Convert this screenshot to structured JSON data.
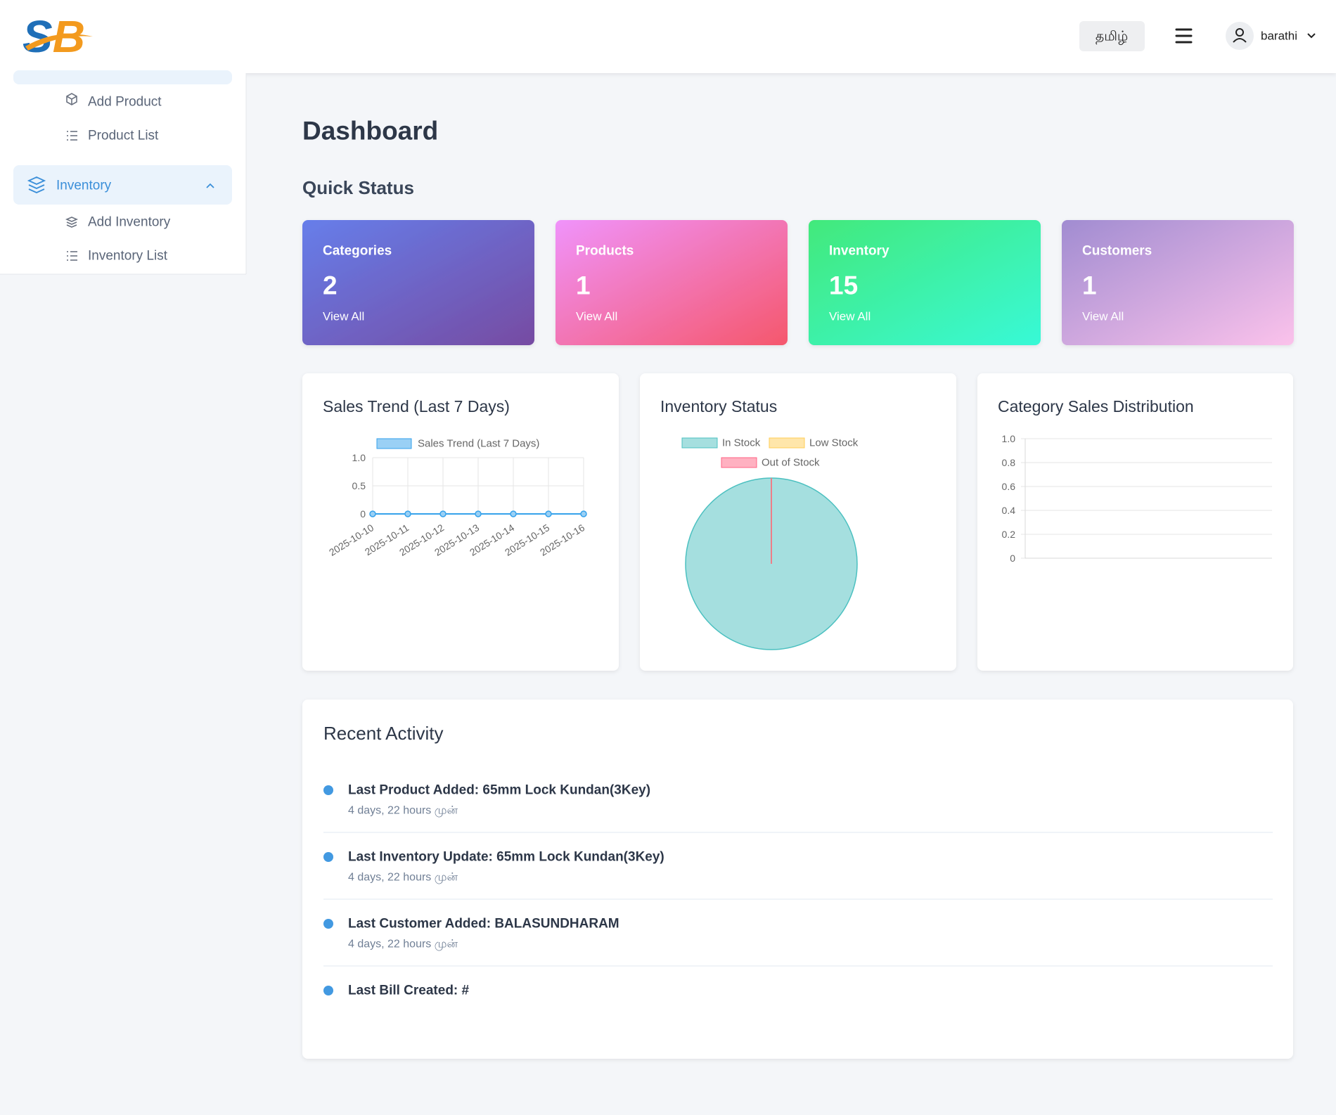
{
  "header": {
    "logo": "SB",
    "language": "தமிழ்",
    "user": "barathi"
  },
  "sidebar": {
    "product_items": [
      "Add Product",
      "Product List"
    ],
    "group": "Inventory",
    "group_items": [
      "Add Inventory",
      "Inventory List"
    ]
  },
  "page_title": "Dashboard",
  "quick_status": {
    "title": "Quick Status",
    "cards": [
      {
        "label": "Categories",
        "value": 2,
        "link": "View All",
        "gradient": [
          "#667eea",
          "#764ba2"
        ]
      },
      {
        "label": "Products",
        "value": 1,
        "link": "View All",
        "gradient": [
          "#f093fb",
          "#f5576c"
        ]
      },
      {
        "label": "Inventory",
        "value": 15,
        "link": "View All",
        "gradient": [
          "#43e97b",
          "#38f9d7"
        ]
      },
      {
        "label": "Customers",
        "value": 1,
        "link": "View All",
        "gradient": [
          "#a18cd1",
          "#fbc2eb"
        ]
      }
    ]
  },
  "sales_trend": {
    "type": "line",
    "title": "Sales Trend (Last 7 Days)",
    "categories": [
      "2025-10-10",
      "2025-10-11",
      "2025-10-12",
      "2025-10-13",
      "2025-10-14",
      "2025-10-15",
      "2025-10-16"
    ],
    "series": [
      {
        "name": "Sales Trend (Last 7 Days)",
        "color": "#36a2eb",
        "values": [
          0,
          0,
          0,
          0,
          0,
          0,
          0
        ]
      }
    ],
    "ylim": [
      0,
      1
    ],
    "yticks": [
      0,
      0.5,
      {
        "value": 1,
        "label": "1.0"
      }
    ],
    "grid": true
  },
  "inventory_status": {
    "type": "pie",
    "title": "Inventory Status",
    "categories": [
      "In Stock",
      "Low Stock",
      "Out of Stock"
    ],
    "values": [
      100,
      0,
      0
    ],
    "colors": [
      "#4bc0c0",
      "#ffcd56",
      "#ff6384"
    ]
  },
  "category_sales": {
    "type": "bar",
    "title": "Category Sales Distribution",
    "ylim": [
      0,
      1
    ],
    "yticks": [
      0,
      0.2,
      0.4,
      0.6,
      0.8,
      {
        "value": 1,
        "label": "1.0"
      }
    ],
    "grid": true
  },
  "recent_activity": {
    "title": "Recent Activity",
    "items": [
      {
        "text": "Last Product Added: 65mm Lock Kundan(3Key)",
        "time": "4 days, 22 hours முன்"
      },
      {
        "text": "Last Inventory Update: 65mm Lock Kundan(3Key)",
        "time": "4 days, 22 hours முன்"
      },
      {
        "text": "Last Customer Added: BALASUNDHARAM",
        "time": "4 days, 22 hours முன்"
      },
      {
        "text": "Last Bill Created: #"
      }
    ]
  }
}
